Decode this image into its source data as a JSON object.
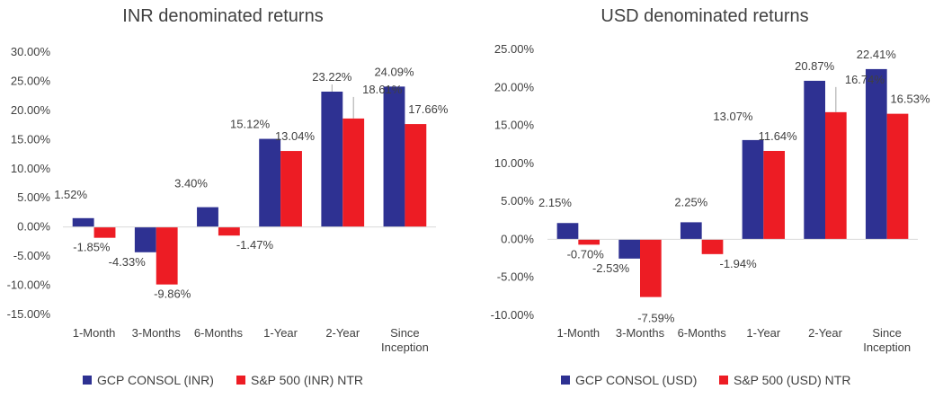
{
  "chart_data": [
    {
      "type": "bar",
      "title": "INR denominated returns",
      "categories": [
        "1-Month",
        "3-Months",
        "6-Months",
        "1-Year",
        "2-Year",
        "Since Inception"
      ],
      "series": [
        {
          "name": "GCP CONSOL (INR)",
          "color": "#2E3192",
          "values": [
            1.52,
            -4.33,
            3.4,
            15.12,
            23.22,
            24.09
          ]
        },
        {
          "name": "S&P 500 (INR) NTR",
          "color": "#ED1C24",
          "values": [
            -1.85,
            -9.86,
            -1.47,
            13.04,
            18.61,
            17.66
          ]
        }
      ],
      "ylim": [
        -15,
        30
      ],
      "yticks": [
        -15,
        -10,
        -5,
        0,
        5,
        10,
        15,
        20,
        25,
        30
      ],
      "ytick_labels": [
        "-15.00%",
        "-10.00%",
        "-5.00%",
        "0.00%",
        "5.00%",
        "10.00%",
        "15.00%",
        "20.00%",
        "25.00%",
        "30.00%"
      ],
      "data_labels": [
        [
          "1.52%",
          "-4.33%",
          "3.40%",
          "15.12%",
          "23.22%",
          "24.09%"
        ],
        [
          "-1.85%",
          "-9.86%",
          "-1.47%",
          "13.04%",
          "18.61%",
          "17.66%"
        ]
      ],
      "grid": false,
      "legend": "bottom"
    },
    {
      "type": "bar",
      "title": "USD denominated returns",
      "categories": [
        "1-Month",
        "3-Months",
        "6-Months",
        "1-Year",
        "2-Year",
        "Since Inception"
      ],
      "series": [
        {
          "name": "GCP CONSOL (USD)",
          "color": "#2E3192",
          "values": [
            2.15,
            -2.53,
            2.25,
            13.07,
            20.87,
            22.41
          ]
        },
        {
          "name": "S&P 500 (USD) NTR",
          "color": "#ED1C24",
          "values": [
            -0.7,
            -7.59,
            -1.94,
            11.64,
            16.74,
            16.53
          ]
        }
      ],
      "ylim": [
        -10,
        25
      ],
      "yticks": [
        -10,
        -5,
        0,
        5,
        10,
        15,
        20,
        25
      ],
      "ytick_labels": [
        "-10.00%",
        "-5.00%",
        "0.00%",
        "5.00%",
        "10.00%",
        "15.00%",
        "20.00%",
        "25.00%"
      ],
      "data_labels": [
        [
          "2.15%",
          "-2.53%",
          "2.25%",
          "13.07%",
          "20.87%",
          "22.41%"
        ],
        [
          "-0.70%",
          "-7.59%",
          "-1.94%",
          "11.64%",
          "16.74%",
          "16.53%"
        ]
      ],
      "grid": false,
      "legend": "bottom"
    }
  ]
}
